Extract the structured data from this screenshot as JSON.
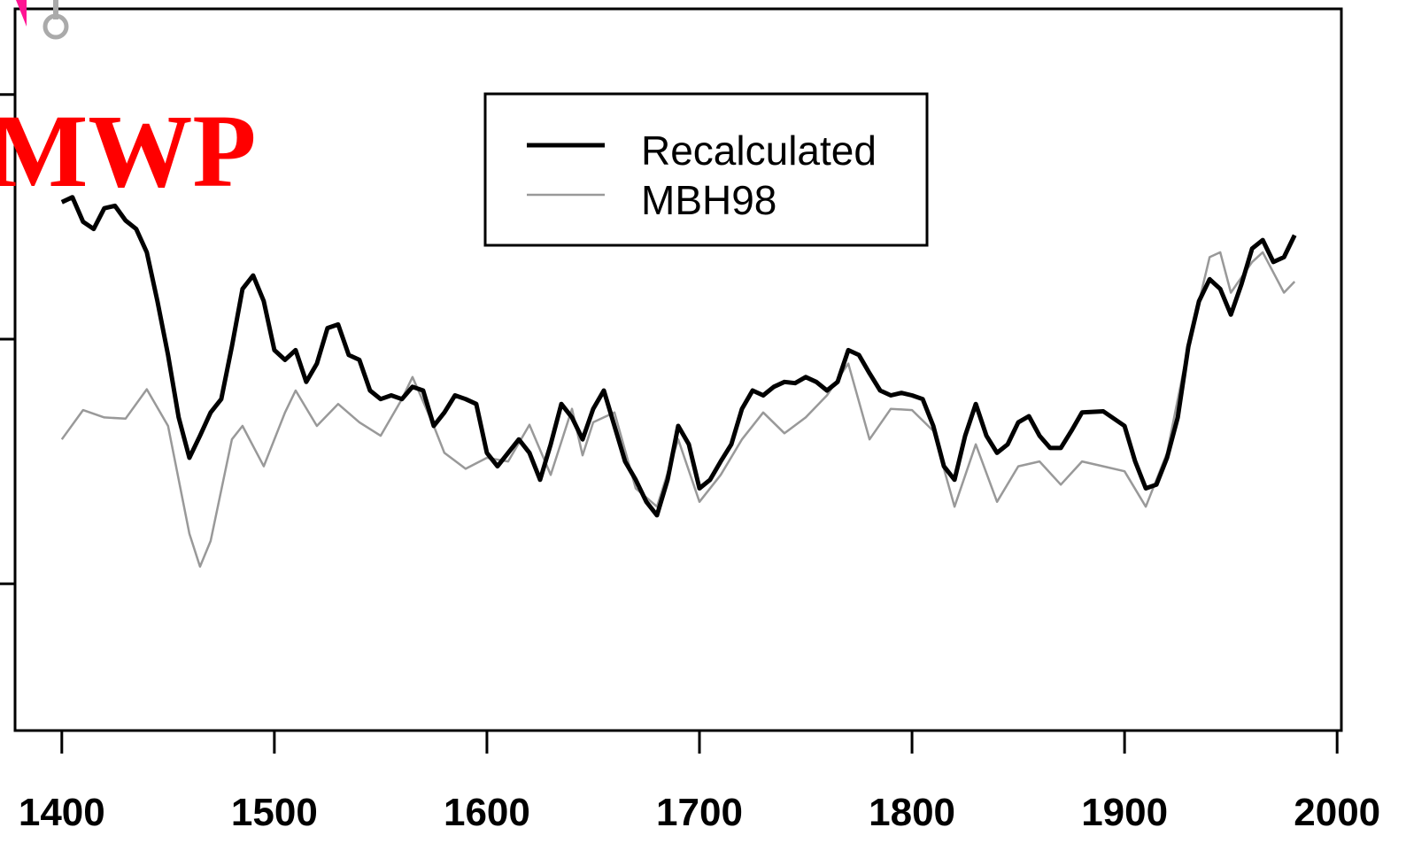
{
  "chart_data": {
    "type": "line",
    "annotations": [
      "MWP"
    ],
    "xlim": [
      1378,
      2002
    ],
    "xticks": [
      1400,
      1500,
      1600,
      1700,
      1800,
      1900,
      2000
    ],
    "ylim": [
      -0.32,
      0.27
    ],
    "yticks": [
      -0.2,
      0,
      0.2
    ],
    "legend": "top",
    "series": [
      {
        "name": "Recalculated",
        "color": "#000000",
        "x": [
          1400,
          1405,
          1410,
          1415,
          1420,
          1425,
          1430,
          1435,
          1440,
          1445,
          1450,
          1455,
          1460,
          1465,
          1470,
          1475,
          1480,
          1485,
          1490,
          1495,
          1500,
          1505,
          1510,
          1515,
          1520,
          1525,
          1530,
          1535,
          1540,
          1545,
          1550,
          1555,
          1560,
          1565,
          1570,
          1575,
          1580,
          1585,
          1590,
          1595,
          1600,
          1605,
          1610,
          1615,
          1620,
          1625,
          1630,
          1635,
          1640,
          1645,
          1650,
          1655,
          1660,
          1665,
          1670,
          1675,
          1680,
          1685,
          1690,
          1695,
          1700,
          1705,
          1710,
          1715,
          1720,
          1725,
          1730,
          1735,
          1740,
          1745,
          1750,
          1755,
          1760,
          1765,
          1770,
          1775,
          1780,
          1785,
          1790,
          1795,
          1800,
          1805,
          1810,
          1815,
          1820,
          1825,
          1830,
          1835,
          1840,
          1845,
          1850,
          1855,
          1860,
          1865,
          1870,
          1875,
          1880,
          1890,
          1900,
          1905,
          1910,
          1915,
          1920,
          1925,
          1930,
          1935,
          1940,
          1945,
          1950,
          1955,
          1960,
          1965,
          1970,
          1975,
          1980
        ],
        "values": [
          0.112,
          0.116,
          0.096,
          0.09,
          0.107,
          0.109,
          0.097,
          0.09,
          0.071,
          0.031,
          -0.013,
          -0.064,
          -0.097,
          -0.079,
          -0.06,
          -0.049,
          -0.006,
          0.041,
          0.052,
          0.031,
          -0.009,
          -0.017,
          -0.009,
          -0.035,
          -0.02,
          0.009,
          0.012,
          -0.013,
          -0.017,
          -0.042,
          -0.049,
          -0.046,
          -0.049,
          -0.039,
          -0.042,
          -0.071,
          -0.06,
          -0.046,
          -0.049,
          -0.053,
          -0.093,
          -0.104,
          -0.093,
          -0.082,
          -0.093,
          -0.115,
          -0.086,
          -0.053,
          -0.064,
          -0.082,
          -0.057,
          -0.042,
          -0.071,
          -0.1,
          -0.115,
          -0.133,
          -0.144,
          -0.115,
          -0.071,
          -0.086,
          -0.122,
          -0.115,
          -0.1,
          -0.086,
          -0.057,
          -0.042,
          -0.046,
          -0.039,
          -0.035,
          -0.036,
          -0.031,
          -0.035,
          -0.042,
          -0.035,
          -0.009,
          -0.013,
          -0.028,
          -0.042,
          -0.046,
          -0.044,
          -0.046,
          -0.049,
          -0.071,
          -0.104,
          -0.115,
          -0.079,
          -0.053,
          -0.079,
          -0.093,
          -0.086,
          -0.068,
          -0.063,
          -0.079,
          -0.089,
          -0.089,
          -0.075,
          -0.06,
          -0.059,
          -0.071,
          -0.1,
          -0.122,
          -0.119,
          -0.097,
          -0.064,
          -0.006,
          0.031,
          0.049,
          0.041,
          0.02,
          0.045,
          0.074,
          0.081,
          0.063,
          0.067,
          0.085
        ]
      },
      {
        "name": "MBH98",
        "color": "#999999",
        "x": [
          1400,
          1410,
          1420,
          1430,
          1440,
          1450,
          1460,
          1465,
          1470,
          1480,
          1485,
          1495,
          1505,
          1510,
          1520,
          1530,
          1540,
          1550,
          1560,
          1565,
          1575,
          1580,
          1590,
          1600,
          1610,
          1620,
          1630,
          1640,
          1645,
          1650,
          1660,
          1670,
          1680,
          1690,
          1700,
          1710,
          1720,
          1730,
          1740,
          1750,
          1760,
          1770,
          1780,
          1790,
          1800,
          1810,
          1820,
          1830,
          1840,
          1850,
          1860,
          1870,
          1880,
          1890,
          1900,
          1910,
          1920,
          1930,
          1940,
          1945,
          1950,
          1960,
          1965,
          1975,
          1980
        ],
        "values": [
          -0.082,
          -0.058,
          -0.064,
          -0.065,
          -0.041,
          -0.071,
          -0.159,
          -0.186,
          -0.165,
          -0.082,
          -0.071,
          -0.104,
          -0.06,
          -0.042,
          -0.071,
          -0.053,
          -0.068,
          -0.079,
          -0.049,
          -0.031,
          -0.071,
          -0.093,
          -0.106,
          -0.097,
          -0.1,
          -0.07,
          -0.111,
          -0.057,
          -0.095,
          -0.068,
          -0.06,
          -0.122,
          -0.137,
          -0.082,
          -0.133,
          -0.111,
          -0.082,
          -0.06,
          -0.077,
          -0.064,
          -0.046,
          -0.02,
          -0.082,
          -0.057,
          -0.058,
          -0.075,
          -0.137,
          -0.086,
          -0.133,
          -0.104,
          -0.1,
          -0.119,
          -0.1,
          -0.104,
          -0.108,
          -0.137,
          -0.093,
          -0.006,
          0.067,
          0.071,
          0.038,
          0.063,
          0.071,
          0.038,
          0.047
        ]
      }
    ]
  }
}
